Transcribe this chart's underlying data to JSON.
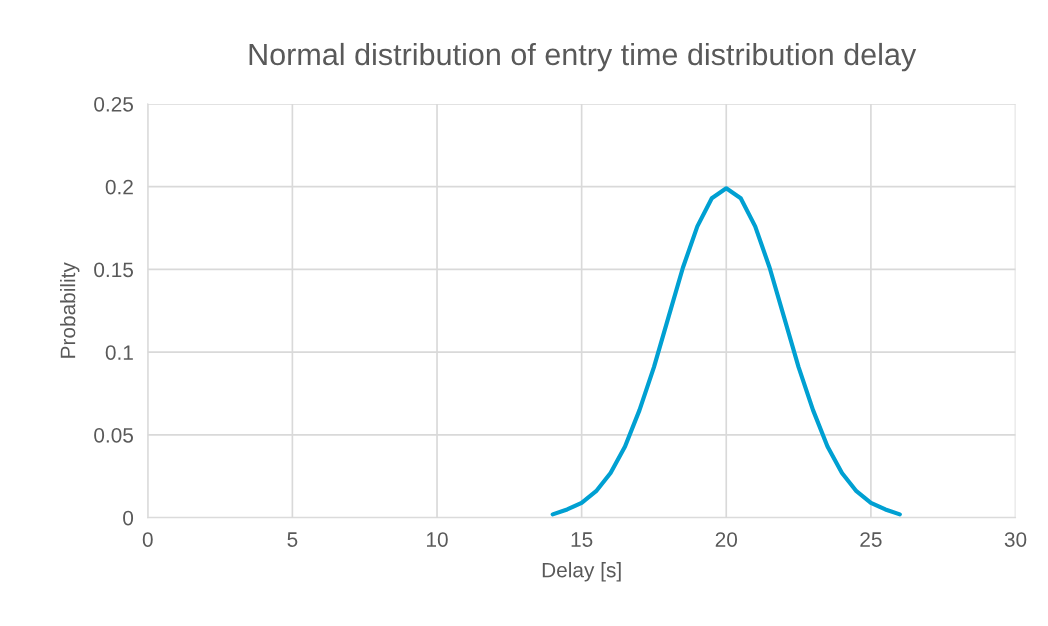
{
  "chart_data": {
    "type": "line",
    "title": "Normal distribution of entry time distribution delay",
    "xlabel": "Delay [s]",
    "ylabel": "Probability",
    "x": [
      14,
      14.5,
      15,
      15.5,
      16,
      16.5,
      17,
      17.5,
      18,
      18.5,
      19,
      19.5,
      20,
      20.5,
      21,
      21.5,
      22,
      22.5,
      23,
      23.5,
      24,
      24.5,
      25,
      25.5,
      26
    ],
    "series": [
      {
        "color": "#00a0d2",
        "values": [
          0.002,
          0.005,
          0.009,
          0.016,
          0.027,
          0.043,
          0.065,
          0.091,
          0.121,
          0.151,
          0.176,
          0.193,
          0.199,
          0.193,
          0.176,
          0.151,
          0.121,
          0.091,
          0.065,
          0.043,
          0.027,
          0.016,
          0.009,
          0.005,
          0.002
        ]
      }
    ],
    "xlim": [
      0,
      30
    ],
    "xticks": [
      0,
      5,
      10,
      15,
      20,
      25,
      30
    ],
    "ylim": [
      0,
      0.25
    ],
    "yticks": [
      0,
      0.05,
      0.1,
      0.15,
      0.2,
      0.25
    ],
    "grid": true,
    "marker": "none",
    "line_style": "solid"
  }
}
